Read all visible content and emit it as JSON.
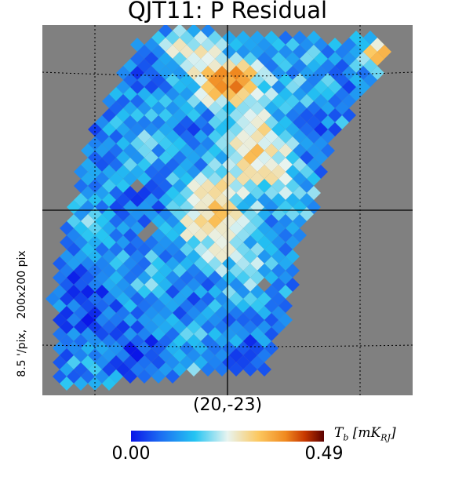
{
  "chart_data": {
    "type": "heatmap",
    "title": "QJT11: P Residual",
    "projection_info": "8.5 '/pix,   200x200 pix",
    "center": "(20,-23)",
    "colorbar": {
      "min": "0.00",
      "max": "0.49",
      "unit": "T_b [mK_RJ]"
    },
    "vmin": 0.0,
    "vmax": 0.49,
    "colors": {
      "background": "#808080",
      "graticule": "#000000",
      "colormap": [
        "#0a16e8",
        "#1c6cf2",
        "#24c4f2",
        "#e8f4f0",
        "#fcc860",
        "#f08a20",
        "#c83800",
        "#5a0000"
      ]
    }
  }
}
